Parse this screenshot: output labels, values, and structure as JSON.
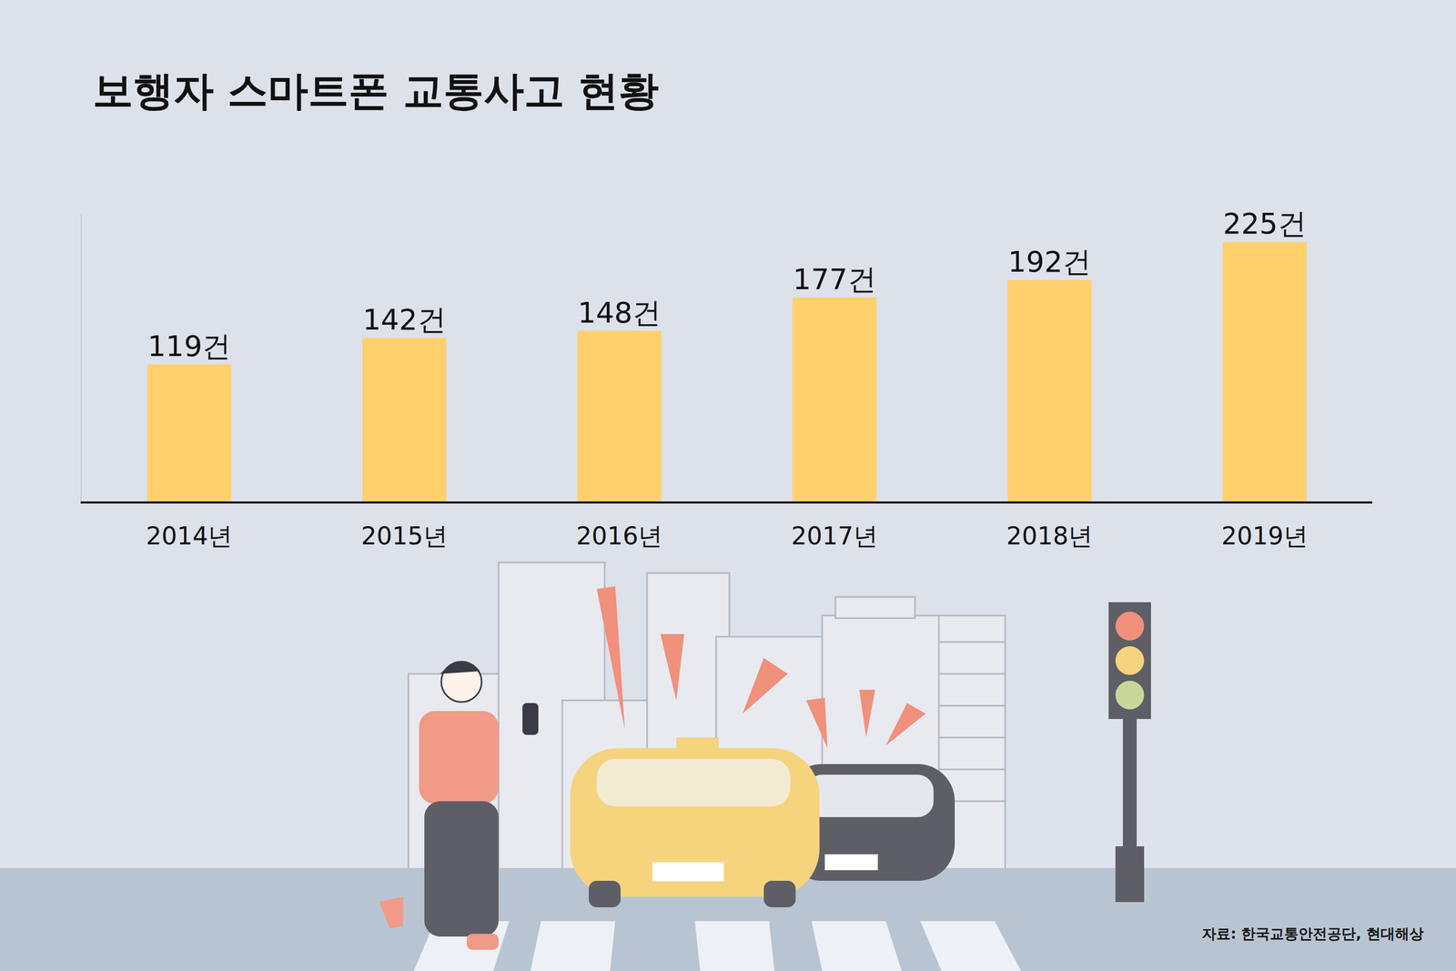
{
  "chart_data": {
    "type": "bar",
    "title": "보행자 스마트폰 교통사고 현황",
    "categories": [
      "2014년",
      "2015년",
      "2016년",
      "2017년",
      "2018년",
      "2019년"
    ],
    "values": [
      119,
      142,
      148,
      177,
      192,
      225
    ],
    "value_labels": [
      "119건",
      "142건",
      "148건",
      "177건",
      "192건",
      "225건"
    ],
    "data_labels": true,
    "color": "#ffd06b",
    "ylim": [
      0,
      250
    ],
    "tick_labels": "x",
    "grid": false,
    "source": "자료: 한국교통안전공단, 현대해상"
  }
}
